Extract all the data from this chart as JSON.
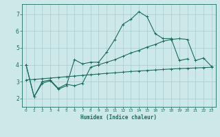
{
  "title": "",
  "xlabel": "Humidex (Indice chaleur)",
  "ylabel": "",
  "bg_color": "#cce8e8",
  "grid_color": "#a8cccc",
  "line_color": "#1a6b5a",
  "xlim": [
    -0.5,
    23.5
  ],
  "ylim": [
    1.5,
    7.6
  ],
  "yticks": [
    2,
    3,
    4,
    5,
    6,
    7
  ],
  "xticks": [
    0,
    1,
    2,
    3,
    4,
    5,
    6,
    7,
    8,
    9,
    10,
    11,
    12,
    13,
    14,
    15,
    16,
    17,
    18,
    19,
    20,
    21,
    22,
    23
  ],
  "curve1_x": [
    0,
    1,
    2,
    3,
    4,
    5,
    6,
    7,
    8,
    9,
    10,
    11,
    12,
    13,
    14,
    15,
    16,
    17,
    18,
    19,
    20
  ],
  "curve1_y": [
    4.0,
    2.1,
    2.9,
    3.05,
    2.55,
    2.75,
    4.3,
    4.05,
    4.15,
    4.15,
    4.75,
    5.5,
    6.4,
    6.7,
    7.15,
    6.85,
    5.85,
    5.55,
    5.55,
    4.25,
    4.35
  ],
  "curve2_x": [
    0,
    1,
    2,
    3,
    4,
    5,
    6,
    7,
    8,
    9,
    10,
    11,
    12,
    13,
    14,
    15,
    16,
    17,
    18,
    19,
    20,
    21,
    22,
    23
  ],
  "curve2_y": [
    4.0,
    2.1,
    3.0,
    3.1,
    2.6,
    2.85,
    2.75,
    2.9,
    3.85,
    4.0,
    4.15,
    4.3,
    4.5,
    4.7,
    4.85,
    5.05,
    5.2,
    5.4,
    5.5,
    5.55,
    5.5,
    4.25,
    4.4,
    3.9
  ],
  "curve3_x": [
    0,
    1,
    2,
    3,
    4,
    5,
    6,
    7,
    8,
    9,
    10,
    11,
    12,
    13,
    14,
    15,
    16,
    17,
    18,
    19,
    20,
    21,
    22,
    23
  ],
  "curve3_y": [
    3.1,
    3.13,
    3.17,
    3.21,
    3.25,
    3.29,
    3.33,
    3.37,
    3.41,
    3.45,
    3.49,
    3.52,
    3.56,
    3.6,
    3.63,
    3.66,
    3.69,
    3.72,
    3.75,
    3.77,
    3.79,
    3.81,
    3.83,
    3.85
  ]
}
